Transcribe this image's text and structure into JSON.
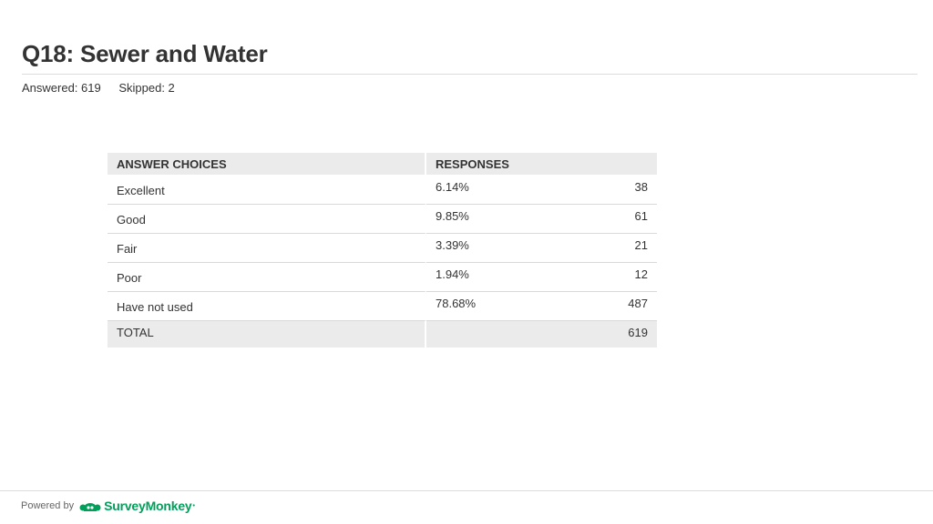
{
  "title": "Q18: Sewer and Water",
  "stats": {
    "answered": "Answered: 619",
    "skipped": "Skipped: 2"
  },
  "table": {
    "headers": {
      "choices": "ANSWER CHOICES",
      "responses": "RESPONSES"
    },
    "rows": [
      {
        "choice": "Excellent",
        "percent": "6.14%",
        "count": "38"
      },
      {
        "choice": "Good",
        "percent": "9.85%",
        "count": "61"
      },
      {
        "choice": "Fair",
        "percent": "3.39%",
        "count": "21"
      },
      {
        "choice": "Poor",
        "percent": "1.94%",
        "count": "12"
      },
      {
        "choice": "Have not used",
        "percent": "78.68%",
        "count": "487"
      }
    ],
    "total": {
      "label": "TOTAL",
      "count": "619"
    }
  },
  "footer": {
    "powered_by": "Powered by",
    "brand": "SurveyMonkey",
    "brand_color": "#00a05a",
    "logo_icon": "surveymonkey-logo-icon"
  }
}
